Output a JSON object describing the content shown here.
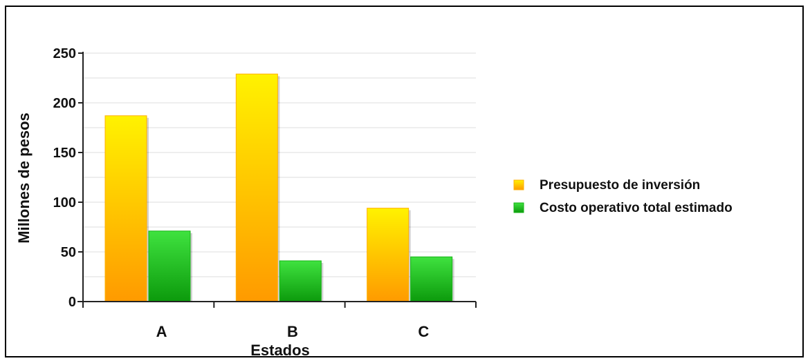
{
  "chart_data": {
    "type": "bar",
    "title": "",
    "xlabel": "Estados",
    "ylabel": "Millones de pesos",
    "categories": [
      "A",
      "B",
      "C"
    ],
    "ylim": [
      0,
      250
    ],
    "yticks": [
      0,
      50,
      100,
      150,
      200,
      250
    ],
    "grid": true,
    "legend_position": "right",
    "series": [
      {
        "name": "Presupuesto de inversión",
        "values": [
          187,
          229,
          94
        ],
        "color": "#ffb000",
        "color_light": "#fff200"
      },
      {
        "name": "Costo operativo total estimado",
        "values": [
          71,
          41,
          45
        ],
        "color": "#16b316",
        "color_light": "#3fe23f"
      }
    ]
  }
}
